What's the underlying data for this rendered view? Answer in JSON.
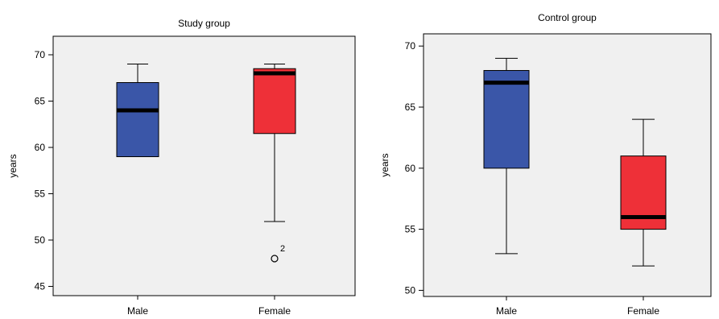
{
  "chart_data": [
    {
      "type": "boxplot",
      "title": "Study group",
      "ylabel": "years",
      "ylim": [
        44,
        72
      ],
      "yticks": [
        45,
        50,
        55,
        60,
        65,
        70
      ],
      "categories": [
        "Male",
        "Female"
      ],
      "boxes": [
        {
          "category": "Male",
          "min": 59,
          "q1": 59,
          "median": 64,
          "q3": 67,
          "max": 69,
          "color": "#3a56a8",
          "outliers": []
        },
        {
          "category": "Female",
          "min": 52,
          "q1": 61.5,
          "median": 68,
          "q3": 68.5,
          "max": 69,
          "color": "#ee3038",
          "outliers": [
            {
              "value": 48,
              "label": "2"
            }
          ]
        }
      ],
      "background": "#f0f0f0"
    },
    {
      "type": "boxplot",
      "title": "Control group",
      "ylabel": "years",
      "ylim": [
        49.5,
        71
      ],
      "yticks": [
        50,
        55,
        60,
        65,
        70
      ],
      "categories": [
        "Male",
        "Female"
      ],
      "boxes": [
        {
          "category": "Male",
          "min": 53,
          "q1": 60,
          "median": 67,
          "q3": 68,
          "max": 69,
          "color": "#3a56a8",
          "outliers": []
        },
        {
          "category": "Female",
          "min": 52,
          "q1": 55,
          "median": 56,
          "q3": 61,
          "max": 64,
          "color": "#ee3038",
          "outliers": []
        }
      ],
      "background": "#f0f0f0"
    }
  ]
}
